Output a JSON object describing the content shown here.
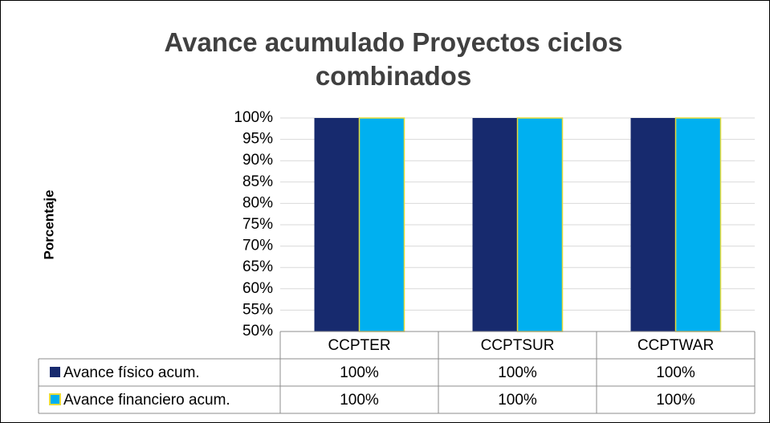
{
  "chart_data": {
    "type": "bar",
    "title": "Avance acumulado Proyectos ciclos combinados",
    "y_label": "Porcentaje",
    "categories": [
      "CCPTER",
      "CCPTSUR",
      "CCPTWAR"
    ],
    "series": [
      {
        "name": "Avance físico acum.",
        "color": "#172a6e",
        "values": [
          100,
          100,
          100
        ],
        "value_labels": [
          "100%",
          "100%",
          "100%"
        ]
      },
      {
        "name": "Avance financiero acum.",
        "color": "#00b0f0",
        "edge_color": "#e8dc3a",
        "values": [
          100,
          100,
          100
        ],
        "value_labels": [
          "100%",
          "100%",
          "100%"
        ]
      }
    ],
    "ylim": [
      50,
      100
    ],
    "yticks": [
      {
        "value": 50,
        "label": "50%"
      },
      {
        "value": 55,
        "label": "55%"
      },
      {
        "value": 60,
        "label": "60%"
      },
      {
        "value": 65,
        "label": "65%"
      },
      {
        "value": 70,
        "label": "70%"
      },
      {
        "value": 75,
        "label": "75%"
      },
      {
        "value": 80,
        "label": "80%"
      },
      {
        "value": 85,
        "label": "85%"
      },
      {
        "value": 90,
        "label": "90%"
      },
      {
        "value": 95,
        "label": "95%"
      },
      {
        "value": 100,
        "label": "100%"
      }
    ],
    "grid": true
  }
}
